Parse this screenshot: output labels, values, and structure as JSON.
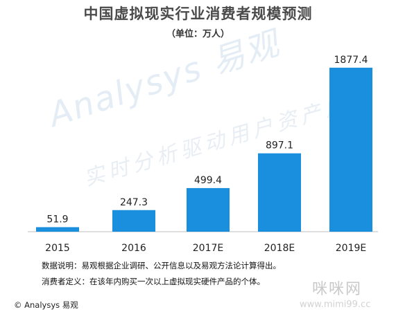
{
  "header": {
    "title": "中国虚拟现实行业消费者规模预测",
    "subtitle": "（单位：万人）"
  },
  "chart_data": {
    "type": "bar",
    "title": "中国虚拟现实行业消费者规模预测",
    "subtitle": "（单位：万人）",
    "categories": [
      "2015",
      "2016",
      "2017E",
      "2018E",
      "2019E"
    ],
    "values": [
      51.9,
      247.3,
      499.4,
      897.1,
      1877.4
    ],
    "value_labels": [
      "51.9",
      "247.3",
      "499.4",
      "897.1",
      "1877.4"
    ],
    "xlabel": "",
    "ylabel": "",
    "ylim": [
      0,
      1900
    ],
    "grid": false,
    "legend": "none",
    "bar_color": "#1a8fdd",
    "label_color": "#222222"
  },
  "notes": {
    "data_note": "数据说明：易观根据企业调研、公开信息以及易观方法论计算得出。",
    "definition_note": "消费者定义：在该年内购买一次以上虚拟现实硬件产品的个体。"
  },
  "footer": {
    "copyright": "© Analysys 易观"
  },
  "watermarks": {
    "logo_text": "Analysys 易观",
    "slogan": "实时分析驱动用户资产成长",
    "site_name": "咪咪网",
    "site_url": "www.mimi99.cc"
  }
}
